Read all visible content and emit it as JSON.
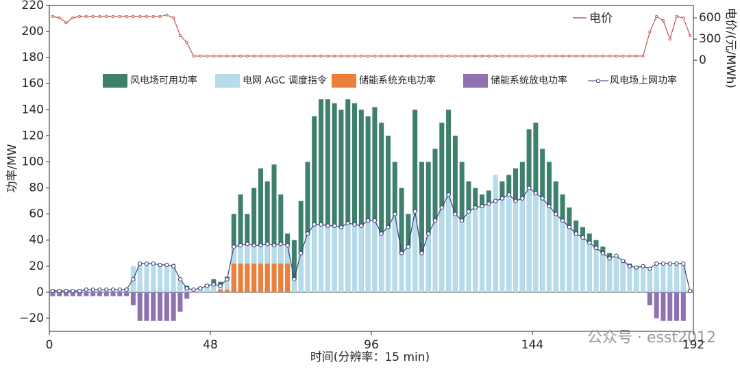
{
  "chart_data": {
    "type": "bar",
    "xlabel": "时间(分辨率：15 min)",
    "ylabel": "功率/MW",
    "y2label": "电价/(元/MWh)",
    "watermark": "公众号 · esst2012",
    "xlim": [
      0,
      192
    ],
    "xticks": [
      0,
      48,
      96,
      144,
      192
    ],
    "ylim": [
      -30,
      220
    ],
    "yticks": [
      {
        "value": -20,
        "label": "−20"
      },
      0,
      20,
      40,
      60,
      80,
      100,
      120,
      140,
      160,
      180,
      200,
      220
    ],
    "y2lim": [
      -3830,
      775
    ],
    "y2ticks": [
      0,
      300,
      600
    ],
    "x": [
      0,
      2,
      4,
      6,
      8,
      10,
      12,
      14,
      16,
      18,
      20,
      22,
      24,
      26,
      28,
      30,
      32,
      34,
      36,
      38,
      40,
      42,
      44,
      46,
      48,
      50,
      52,
      54,
      56,
      58,
      60,
      62,
      64,
      66,
      68,
      70,
      72,
      74,
      76,
      78,
      80,
      82,
      84,
      86,
      88,
      90,
      92,
      94,
      96,
      98,
      100,
      102,
      104,
      106,
      108,
      110,
      112,
      114,
      116,
      118,
      120,
      122,
      124,
      126,
      128,
      130,
      132,
      134,
      136,
      138,
      140,
      142,
      144,
      146,
      148,
      150,
      152,
      154,
      156,
      158,
      160,
      162,
      164,
      166,
      168,
      170,
      172,
      174,
      176,
      178,
      180,
      182,
      184,
      186,
      188,
      190
    ],
    "series": [
      {
        "name": "风电场可用功率",
        "kind": "bar",
        "color": "#3f7f6e",
        "values": [
          2,
          2,
          2,
          2,
          2,
          2,
          2,
          2,
          2,
          2,
          2,
          3,
          10,
          5,
          4,
          4,
          3,
          3,
          3,
          8,
          5,
          2,
          4,
          6,
          10,
          8,
          12,
          60,
          75,
          60,
          80,
          95,
          85,
          98,
          75,
          45,
          40,
          70,
          100,
          135,
          148,
          148,
          145,
          140,
          148,
          145,
          140,
          135,
          142,
          130,
          120,
          100,
          80,
          60,
          140,
          100,
          100,
          110,
          130,
          140,
          120,
          100,
          85,
          80,
          75,
          78,
          80,
          85,
          90,
          95,
          100,
          125,
          130,
          110,
          100,
          85,
          75,
          65,
          55,
          50,
          45,
          40,
          35,
          30,
          28,
          25,
          22,
          20,
          18,
          15,
          10,
          5,
          5,
          5,
          5,
          2
        ]
      },
      {
        "name": "电网 AGC 调度指令",
        "kind": "bar",
        "color": "#b6dcec",
        "values": [
          1,
          1,
          1,
          1,
          1,
          2,
          2,
          2,
          2,
          2,
          2,
          2,
          20,
          22,
          22,
          22,
          22,
          22,
          22,
          10,
          3,
          2,
          3,
          5,
          6,
          5,
          10,
          35,
          36,
          37,
          36,
          36,
          37,
          36,
          37,
          36,
          10,
          30,
          45,
          52,
          52,
          51,
          51,
          50,
          53,
          52,
          51,
          55,
          55,
          45,
          50,
          60,
          30,
          35,
          62,
          30,
          45,
          55,
          65,
          75,
          60,
          55,
          62,
          65,
          66,
          68,
          90,
          72,
          75,
          70,
          72,
          80,
          76,
          72,
          66,
          60,
          55,
          50,
          45,
          42,
          38,
          34,
          30,
          26,
          28,
          24,
          20,
          19,
          20,
          18,
          22,
          22,
          22,
          22,
          22,
          1
        ]
      },
      {
        "name": "储能系统充电功率",
        "kind": "bar",
        "color": "#ec7f39",
        "values": [
          0,
          0,
          0,
          0,
          0,
          0,
          0,
          0,
          0,
          0,
          0,
          0,
          0,
          0,
          0,
          0,
          0,
          0,
          0,
          0,
          0,
          0,
          0,
          0,
          0,
          2,
          2,
          22,
          22,
          22,
          22,
          22,
          22,
          22,
          22,
          22,
          0,
          0,
          0,
          0,
          0,
          0,
          0,
          0,
          0,
          0,
          0,
          0,
          0,
          0,
          0,
          0,
          0,
          0,
          0,
          0,
          0,
          0,
          0,
          0,
          0,
          0,
          0,
          0,
          0,
          0,
          0,
          0,
          0,
          0,
          0,
          0,
          0,
          0,
          0,
          0,
          0,
          0,
          0,
          0,
          0,
          0,
          0,
          0,
          0,
          0,
          0,
          0,
          0,
          0,
          0,
          0,
          0,
          0,
          0,
          0
        ]
      },
      {
        "name": "储能系统放电功率",
        "kind": "bar",
        "color": "#8f72b0",
        "values": [
          -3,
          -3,
          -3,
          -3,
          -3,
          -3,
          -3,
          -3,
          -3,
          -3,
          -3,
          -3,
          -10,
          -22,
          -22,
          -22,
          -22,
          -22,
          -22,
          -15,
          -5,
          0,
          0,
          0,
          0,
          0,
          0,
          0,
          0,
          0,
          0,
          0,
          0,
          0,
          0,
          0,
          0,
          0,
          0,
          0,
          0,
          0,
          0,
          0,
          0,
          0,
          0,
          0,
          0,
          0,
          0,
          0,
          0,
          0,
          0,
          0,
          0,
          0,
          0,
          0,
          0,
          0,
          0,
          0,
          0,
          0,
          0,
          0,
          0,
          0,
          0,
          0,
          0,
          0,
          0,
          0,
          0,
          0,
          0,
          0,
          0,
          0,
          0,
          0,
          0,
          0,
          0,
          0,
          0,
          -10,
          -20,
          -22,
          -22,
          -22,
          -22,
          0
        ]
      },
      {
        "name": "风电场上网功率",
        "kind": "line",
        "color": "#3a3a7a",
        "values": [
          1,
          1,
          1,
          1,
          1,
          2,
          2,
          2,
          2,
          2,
          2,
          2,
          10,
          22,
          22,
          22,
          21,
          21,
          20,
          10,
          3,
          2,
          3,
          5,
          6,
          5,
          10,
          35,
          36,
          37,
          36,
          36,
          37,
          36,
          37,
          36,
          10,
          30,
          45,
          52,
          52,
          51,
          51,
          50,
          53,
          52,
          51,
          55,
          55,
          45,
          50,
          60,
          30,
          35,
          62,
          30,
          45,
          55,
          65,
          75,
          60,
          55,
          62,
          65,
          66,
          68,
          70,
          72,
          75,
          70,
          72,
          80,
          76,
          72,
          66,
          60,
          55,
          50,
          45,
          42,
          38,
          34,
          30,
          26,
          28,
          24,
          20,
          19,
          20,
          18,
          22,
          22,
          22,
          22,
          22,
          1
        ]
      },
      {
        "name": "电价",
        "kind": "line",
        "axis": "y2",
        "color": "#c0504d",
        "values": [
          620,
          600,
          530,
          600,
          620,
          620,
          620,
          620,
          620,
          620,
          620,
          620,
          620,
          620,
          620,
          620,
          620,
          640,
          600,
          350,
          250,
          60,
          60,
          60,
          60,
          60,
          60,
          60,
          60,
          60,
          60,
          60,
          60,
          60,
          60,
          60,
          60,
          60,
          60,
          60,
          60,
          60,
          60,
          60,
          60,
          60,
          60,
          60,
          60,
          60,
          60,
          60,
          60,
          60,
          60,
          60,
          60,
          60,
          60,
          60,
          60,
          60,
          60,
          60,
          60,
          60,
          60,
          60,
          60,
          60,
          60,
          60,
          60,
          60,
          60,
          60,
          60,
          60,
          60,
          60,
          60,
          60,
          60,
          60,
          60,
          60,
          60,
          60,
          60,
          400,
          620,
          560,
          300,
          620,
          600,
          350
        ]
      }
    ]
  }
}
